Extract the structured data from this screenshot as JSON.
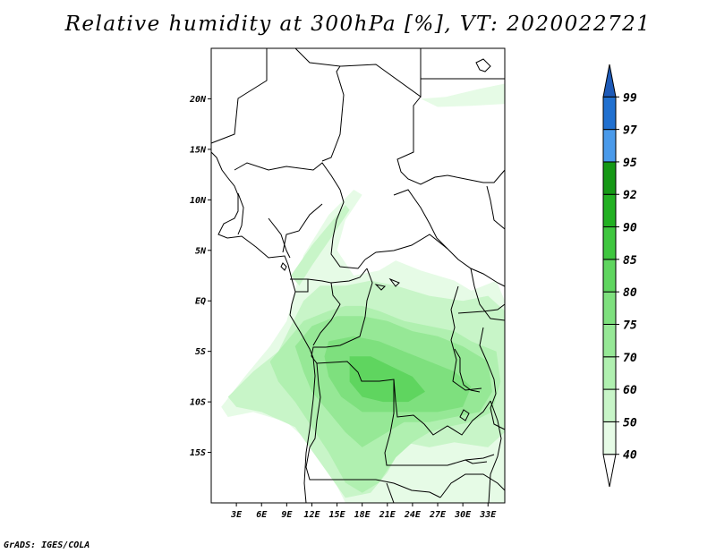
{
  "title": "Relative humidity at 300hPa [%], VT: 2020022721",
  "credit": "GrADS: IGES/COLA",
  "map": {
    "lon_range": [
      0,
      35
    ],
    "lat_range": [
      -20,
      25
    ],
    "lat_ticks": [
      {
        "value": 20,
        "label": "20N"
      },
      {
        "value": 15,
        "label": "15N"
      },
      {
        "value": 10,
        "label": "10N"
      },
      {
        "value": 5,
        "label": "5N"
      },
      {
        "value": 0,
        "label": "EQ"
      },
      {
        "value": -5,
        "label": "5S"
      },
      {
        "value": -10,
        "label": "10S"
      },
      {
        "value": -15,
        "label": "15S"
      }
    ],
    "lon_ticks": [
      {
        "value": 3,
        "label": "3E"
      },
      {
        "value": 6,
        "label": "6E"
      },
      {
        "value": 9,
        "label": "9E"
      },
      {
        "value": 12,
        "label": "12E"
      },
      {
        "value": 15,
        "label": "15E"
      },
      {
        "value": 18,
        "label": "18E"
      },
      {
        "value": 21,
        "label": "21E"
      },
      {
        "value": 24,
        "label": "24E"
      },
      {
        "value": 27,
        "label": "27E"
      },
      {
        "value": 30,
        "label": "30E"
      },
      {
        "value": 33,
        "label": "33E"
      }
    ]
  },
  "colorbar": {
    "levels": [
      "40",
      "50",
      "60",
      "70",
      "75",
      "80",
      "85",
      "90",
      "92",
      "95",
      "97",
      "99"
    ],
    "colors": [
      "#ffffff",
      "#e6fbe6",
      "#c8f5c8",
      "#b0f0b0",
      "#96e896",
      "#7ee07e",
      "#5fd55f",
      "#3fc63f",
      "#22b022",
      "#159815",
      "#4a9aea",
      "#2070d0",
      "#1d5ab8"
    ]
  },
  "chart_data": {
    "type": "heatmap",
    "title": "Relative humidity at 300hPa [%], VT: 2020022721",
    "variable": "Relative humidity at 300hPa",
    "unit": "%",
    "valid_time": "2020022721",
    "x_range_deg_east": [
      0,
      35
    ],
    "y_range_deg_north": [
      -20,
      25
    ],
    "contour_levels": [
      40,
      50,
      60,
      70,
      75,
      80,
      85,
      90,
      92,
      95,
      97,
      99
    ],
    "regions": [
      {
        "level": 40,
        "points": [
          [
            1.2,
            -10.5
          ],
          [
            4,
            -7.5
          ],
          [
            7,
            -4.5
          ],
          [
            9,
            -2
          ],
          [
            10,
            1
          ],
          [
            11,
            4.5
          ],
          [
            14,
            8.5
          ],
          [
            17,
            11
          ],
          [
            18,
            10.5
          ],
          [
            16,
            8
          ],
          [
            15,
            5
          ],
          [
            17,
            2.5
          ],
          [
            20,
            3
          ],
          [
            22,
            4
          ],
          [
            25,
            3
          ],
          [
            29,
            2
          ],
          [
            31,
            1
          ],
          [
            34,
            2
          ],
          [
            35,
            0
          ],
          [
            35,
            -20
          ],
          [
            16,
            -20
          ],
          [
            13,
            -15
          ],
          [
            9,
            -12
          ],
          [
            5,
            -11
          ],
          [
            2,
            -11.5
          ]
        ]
      },
      {
        "level": 40,
        "points": [
          [
            25,
            20
          ],
          [
            28,
            20.2
          ],
          [
            32,
            21
          ],
          [
            35,
            21.5
          ],
          [
            35,
            19.5
          ],
          [
            31,
            19.3
          ],
          [
            27,
            19.2
          ]
        ]
      },
      {
        "level": 50,
        "points": [
          [
            2,
            -9.5
          ],
          [
            5,
            -7
          ],
          [
            8,
            -5
          ],
          [
            9.5,
            -2.5
          ],
          [
            11,
            0
          ],
          [
            13,
            1.5
          ],
          [
            16,
            1.5
          ],
          [
            19,
            2
          ],
          [
            22,
            1.5
          ],
          [
            26,
            0.5
          ],
          [
            30,
            0
          ],
          [
            33,
            0.5
          ],
          [
            35,
            -1
          ],
          [
            35,
            -13
          ],
          [
            33,
            -14.5
          ],
          [
            29,
            -14
          ],
          [
            26,
            -14.5
          ],
          [
            23,
            -14
          ],
          [
            21,
            -17
          ],
          [
            19,
            -19
          ],
          [
            16,
            -19.5
          ],
          [
            13,
            -16
          ],
          [
            10,
            -12.5
          ],
          [
            6,
            -11
          ],
          [
            3,
            -10.5
          ]
        ]
      },
      {
        "level": 50,
        "points": [
          [
            9.5,
            2.5
          ],
          [
            12,
            5.5
          ],
          [
            14.5,
            8
          ],
          [
            16,
            9.5
          ],
          [
            16.5,
            9
          ],
          [
            14.5,
            6.5
          ],
          [
            12,
            3.5
          ],
          [
            10.5,
            1.5
          ]
        ]
      },
      {
        "level": 60,
        "points": [
          [
            7,
            -6
          ],
          [
            9,
            -4
          ],
          [
            11,
            -2
          ],
          [
            14,
            -1
          ],
          [
            16,
            -0.5
          ],
          [
            18,
            -0.5
          ],
          [
            20,
            -1
          ],
          [
            23,
            -2
          ],
          [
            26,
            -2.5
          ],
          [
            29,
            -3
          ],
          [
            31,
            -4
          ],
          [
            34,
            -5
          ],
          [
            34.5,
            -8
          ],
          [
            33.5,
            -11
          ],
          [
            31,
            -12
          ],
          [
            28,
            -12.5
          ],
          [
            26,
            -13
          ],
          [
            24,
            -14
          ],
          [
            22,
            -15.5
          ],
          [
            20,
            -18
          ],
          [
            18,
            -19
          ],
          [
            16,
            -18
          ],
          [
            14,
            -15
          ],
          [
            12,
            -12.5
          ],
          [
            10,
            -10
          ],
          [
            8,
            -8
          ]
        ]
      },
      {
        "level": 70,
        "points": [
          [
            10,
            -4.5
          ],
          [
            12,
            -2.5
          ],
          [
            15,
            -1.5
          ],
          [
            18,
            -1.5
          ],
          [
            21,
            -2
          ],
          [
            24,
            -3
          ],
          [
            27,
            -3.5
          ],
          [
            30,
            -4.5
          ],
          [
            33,
            -6
          ],
          [
            33.5,
            -9
          ],
          [
            32,
            -11
          ],
          [
            29,
            -11.5
          ],
          [
            26,
            -12
          ],
          [
            23,
            -12
          ],
          [
            20,
            -13.5
          ],
          [
            18,
            -14.5
          ],
          [
            16,
            -13
          ],
          [
            14,
            -11
          ],
          [
            12,
            -9
          ],
          [
            11,
            -7
          ]
        ]
      },
      {
        "level": 75,
        "points": [
          [
            14,
            -4
          ],
          [
            17,
            -3.5
          ],
          [
            20,
            -4
          ],
          [
            23,
            -5
          ],
          [
            26,
            -6
          ],
          [
            29,
            -7
          ],
          [
            31,
            -8.5
          ],
          [
            30,
            -10.5
          ],
          [
            27,
            -11
          ],
          [
            24,
            -11
          ],
          [
            21,
            -11
          ],
          [
            18,
            -11
          ],
          [
            15.5,
            -9.5
          ],
          [
            14,
            -7.5
          ],
          [
            13.5,
            -5.5
          ]
        ]
      },
      {
        "level": 80,
        "points": [
          [
            16.5,
            -5.5
          ],
          [
            19,
            -5.5
          ],
          [
            21.5,
            -6.5
          ],
          [
            24,
            -7.5
          ],
          [
            25.5,
            -9
          ],
          [
            23.5,
            -10
          ],
          [
            20.5,
            -10
          ],
          [
            18,
            -9.5
          ],
          [
            16.5,
            -8
          ]
        ]
      }
    ]
  }
}
